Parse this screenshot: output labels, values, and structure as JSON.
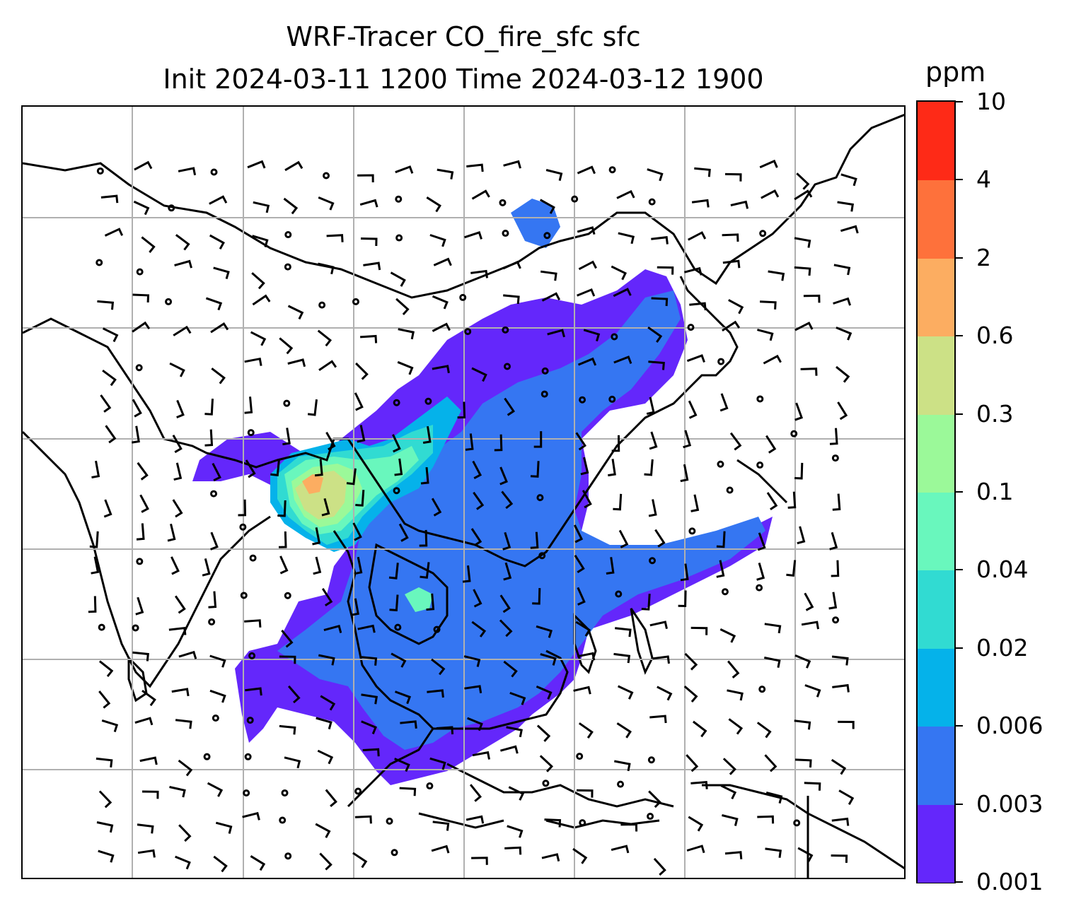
{
  "title": {
    "line1": "WRF-Tracer CO_fire_sfc sfc",
    "line2": "Init 2024-03-11 1200 Time 2024-03-12 1900"
  },
  "colorbar": {
    "unit": "ppm",
    "levels": [
      "0.001",
      "0.003",
      "0.006",
      "0.02",
      "0.04",
      "0.1",
      "0.3",
      "0.6",
      "2",
      "4",
      "10"
    ],
    "colors": [
      "#6427fb",
      "#3576f2",
      "#05b2ea",
      "#31dbd2",
      "#69f7bd",
      "#9bf999",
      "#cce186",
      "#fcad61",
      "#fe713b",
      "#fe2a17"
    ]
  },
  "map": {
    "gridlines": true,
    "coastline_color": "#000000",
    "wind_barbs": true
  }
}
